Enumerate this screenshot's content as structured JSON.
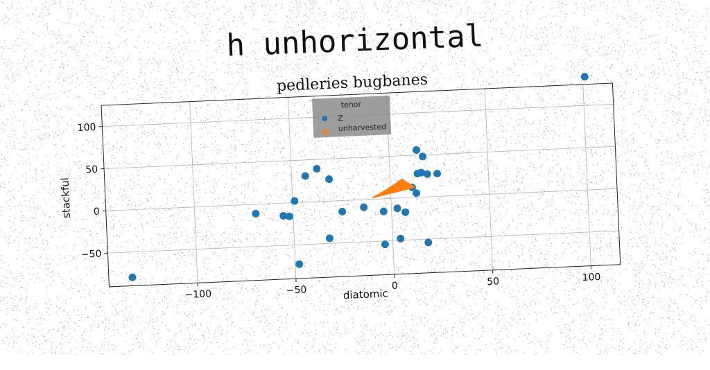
{
  "suptitle": "h unhorizontal",
  "chart_data": {
    "type": "scatter",
    "title": "pedleries bugbanes",
    "xlabel": "diatomic",
    "ylabel": "stackful",
    "xlim": [
      -145,
      115
    ],
    "ylim": [
      -90,
      125
    ],
    "xticks": [
      -100,
      -50,
      0,
      50,
      100
    ],
    "yticks": [
      -50,
      0,
      50,
      100
    ],
    "grid": true,
    "legend": {
      "title": "tenor",
      "placement": "top-center"
    },
    "series": [
      {
        "name": "Z",
        "marker": "circle",
        "color": "#1f77b4",
        "points": [
          [
            -133,
            -80
          ],
          [
            -69,
            -11
          ],
          [
            -55,
            -15
          ],
          [
            -52,
            -16
          ],
          [
            -49,
            2
          ],
          [
            -48,
            -73
          ],
          [
            -43,
            31
          ],
          [
            -37,
            39
          ],
          [
            -32,
            -44
          ],
          [
            -31,
            26
          ],
          [
            -25,
            -13
          ],
          [
            -14,
            -9
          ],
          [
            -4,
            -15
          ],
          [
            -4,
            -54
          ],
          [
            3,
            -12
          ],
          [
            7,
            -17
          ],
          [
            4,
            -48
          ],
          [
            11,
            12
          ],
          [
            13,
            5
          ],
          [
            14,
            28
          ],
          [
            16,
            29
          ],
          [
            17,
            48
          ],
          [
            14,
            56
          ],
          [
            19,
            27
          ],
          [
            24,
            27
          ],
          [
            18,
            -54
          ],
          [
            101,
            134
          ]
        ]
      },
      {
        "name": "unharvested",
        "marker": "filled-polygon",
        "color": "#ff7f0e",
        "points": [
          [
            -9,
            2
          ],
          [
            0,
            13
          ],
          [
            6,
            22
          ],
          [
            12,
            12
          ],
          [
            -3,
            5
          ]
        ]
      }
    ]
  }
}
